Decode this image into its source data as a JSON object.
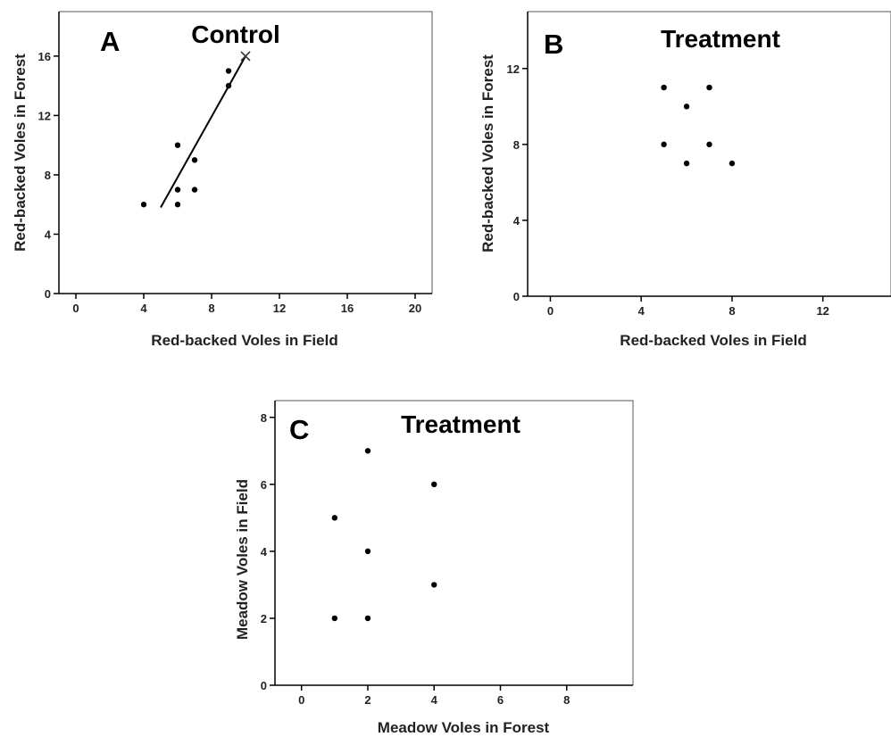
{
  "chart_data": [
    {
      "type": "scatter",
      "panel": "A",
      "title": "Control",
      "xlabel": "Red-backed Voles in Field",
      "ylabel": "Red-backed Voles in Forest",
      "xlim": [
        -1,
        21
      ],
      "ylim": [
        0,
        19
      ],
      "xticks": [
        0,
        4,
        8,
        12,
        16,
        20
      ],
      "yticks": [
        0,
        4,
        8,
        12,
        16
      ],
      "points": [
        [
          4,
          6
        ],
        [
          6,
          6
        ],
        [
          6,
          7
        ],
        [
          6,
          10
        ],
        [
          7,
          7
        ],
        [
          7,
          9
        ],
        [
          9,
          14
        ],
        [
          9,
          15
        ]
      ],
      "x_marker": [
        10,
        16
      ],
      "fit_line": [
        [
          5,
          5.8
        ],
        [
          10,
          16
        ]
      ]
    },
    {
      "type": "scatter",
      "panel": "B",
      "title": "Treatment",
      "xlabel": "Red-backed Voles in Field",
      "ylabel": "Red-backed Voles in Forest",
      "xlim": [
        -1,
        15
      ],
      "ylim": [
        0,
        15
      ],
      "xticks": [
        0,
        4,
        8,
        12
      ],
      "yticks": [
        0,
        4,
        8,
        12
      ],
      "points": [
        [
          5,
          8
        ],
        [
          5,
          11
        ],
        [
          6,
          7
        ],
        [
          6,
          10
        ],
        [
          7,
          8
        ],
        [
          7,
          11
        ],
        [
          8,
          7
        ]
      ]
    },
    {
      "type": "scatter",
      "panel": "C",
      "title": "Treatment",
      "xlabel": "Meadow Voles in Forest",
      "ylabel": "Meadow Voles in Field",
      "xlim": [
        -0.8,
        10
      ],
      "ylim": [
        0,
        8.5
      ],
      "xticks": [
        0,
        2,
        4,
        6,
        8
      ],
      "yticks": [
        0,
        2,
        4,
        6,
        8
      ],
      "points": [
        [
          1,
          2
        ],
        [
          1,
          5
        ],
        [
          2,
          2
        ],
        [
          2,
          4
        ],
        [
          2,
          7
        ],
        [
          4,
          3
        ],
        [
          4,
          6
        ]
      ]
    }
  ]
}
